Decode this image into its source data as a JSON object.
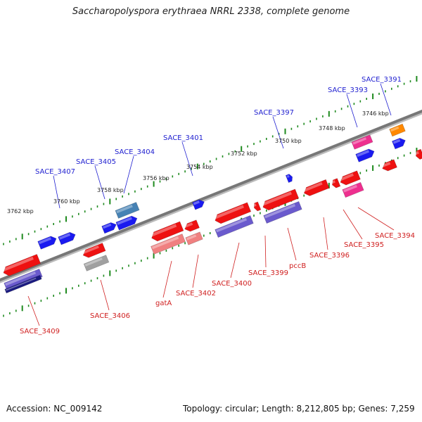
{
  "title": "Saccharopolyspora erythraea NRRL 2338, complete genome",
  "footer": {
    "accession": "Accession: NC_009142",
    "topology": "Topology: circular; Length: 8,212,805 bp; Genes: 7,259"
  },
  "ruler_labels": [
    "3762 kbp",
    "3760 kbp",
    "3758 kbp",
    "3756 kbp",
    "3754 kbp",
    "3752 kbp",
    "3750 kbp",
    "3748 kbp",
    "3746 kbp"
  ],
  "gene_labels_top": [
    "SACE_3407",
    "SACE_3405",
    "SACE_3404",
    "SACE_3401",
    "SACE_3397",
    "SACE_3393",
    "SACE_3391"
  ],
  "gene_labels_bottom": [
    "SACE_3409",
    "SACE_3406",
    "gatA",
    "SACE_3402",
    "SACE_3400",
    "SACE_3399",
    "pccB",
    "SACE_3396",
    "SACE_3395",
    "SACE_3394"
  ],
  "colors": {
    "forward_label": "#1f1fd0",
    "reverse_label": "#d02020",
    "backbone": "#777777",
    "tick": "#1e8a1e",
    "cds_red": "#ee1111",
    "cds_blue": "#1a1af0",
    "cds_pink": "#ee2f8f",
    "cds_orange": "#ff8800",
    "cds_steel": "#4682b4",
    "cds_purple": "#6a5acd",
    "cds_navy": "#1a1a80",
    "cds_salmon": "#f08080",
    "cds_gray": "#a0a0a0"
  }
}
